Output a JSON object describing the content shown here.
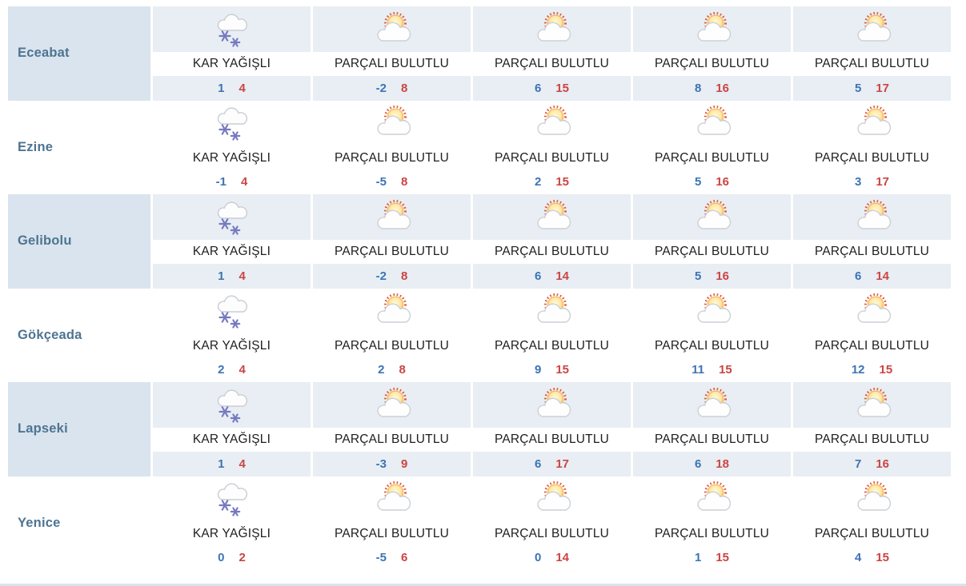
{
  "colors": {
    "min_temp": "#3c74b4",
    "max_temp": "#cc4444",
    "shaded_row_bg": "#d9e4ee",
    "forecast_tile_bg": "#e8eef3",
    "city_name_text": "#4e7492",
    "snowflake": "#757ac1",
    "sun_ray": "#e25b35"
  },
  "conditions": {
    "snow_label": "KAR YAĞIŞLI",
    "partly_cloudy_label": "PARÇALI BULUTLU"
  },
  "rows": [
    {
      "name": "Eceabat",
      "shaded": true,
      "forecasts": [
        {
          "icon": "snow-cloud-icon",
          "condition": "KAR YAĞIŞLI",
          "min": "1",
          "max": "4"
        },
        {
          "icon": "sun-behind-cloud-icon",
          "condition": "PARÇALI BULUTLU",
          "min": "-2",
          "max": "8"
        },
        {
          "icon": "sun-behind-cloud-icon",
          "condition": "PARÇALI BULUTLU",
          "min": "6",
          "max": "15"
        },
        {
          "icon": "sun-behind-cloud-icon",
          "condition": "PARÇALI BULUTLU",
          "min": "8",
          "max": "16"
        },
        {
          "icon": "sun-behind-cloud-icon",
          "condition": "PARÇALI BULUTLU",
          "min": "5",
          "max": "17"
        }
      ]
    },
    {
      "name": "Ezine",
      "shaded": false,
      "forecasts": [
        {
          "icon": "snow-cloud-icon",
          "condition": "KAR YAĞIŞLI",
          "min": "-1",
          "max": "4"
        },
        {
          "icon": "sun-behind-cloud-icon",
          "condition": "PARÇALI BULUTLU",
          "min": "-5",
          "max": "8"
        },
        {
          "icon": "sun-behind-cloud-icon",
          "condition": "PARÇALI BULUTLU",
          "min": "2",
          "max": "15"
        },
        {
          "icon": "sun-behind-cloud-icon",
          "condition": "PARÇALI BULUTLU",
          "min": "5",
          "max": "16"
        },
        {
          "icon": "sun-behind-cloud-icon",
          "condition": "PARÇALI BULUTLU",
          "min": "3",
          "max": "17"
        }
      ]
    },
    {
      "name": "Gelibolu",
      "shaded": true,
      "forecasts": [
        {
          "icon": "snow-cloud-icon",
          "condition": "KAR YAĞIŞLI",
          "min": "1",
          "max": "4"
        },
        {
          "icon": "sun-behind-cloud-icon",
          "condition": "PARÇALI BULUTLU",
          "min": "-2",
          "max": "8"
        },
        {
          "icon": "sun-behind-cloud-icon",
          "condition": "PARÇALI BULUTLU",
          "min": "6",
          "max": "14"
        },
        {
          "icon": "sun-behind-cloud-icon",
          "condition": "PARÇALI BULUTLU",
          "min": "5",
          "max": "16"
        },
        {
          "icon": "sun-behind-cloud-icon",
          "condition": "PARÇALI BULUTLU",
          "min": "6",
          "max": "14"
        }
      ]
    },
    {
      "name": "Gökçeada",
      "shaded": false,
      "forecasts": [
        {
          "icon": "snow-cloud-icon",
          "condition": "KAR YAĞIŞLI",
          "min": "2",
          "max": "4"
        },
        {
          "icon": "sun-behind-cloud-icon",
          "condition": "PARÇALI BULUTLU",
          "min": "2",
          "max": "8"
        },
        {
          "icon": "sun-behind-cloud-icon",
          "condition": "PARÇALI BULUTLU",
          "min": "9",
          "max": "15"
        },
        {
          "icon": "sun-behind-cloud-icon",
          "condition": "PARÇALI BULUTLU",
          "min": "11",
          "max": "15"
        },
        {
          "icon": "sun-behind-cloud-icon",
          "condition": "PARÇALI BULUTLU",
          "min": "12",
          "max": "15"
        }
      ]
    },
    {
      "name": "Lapseki",
      "shaded": true,
      "forecasts": [
        {
          "icon": "snow-cloud-icon",
          "condition": "KAR YAĞIŞLI",
          "min": "1",
          "max": "4"
        },
        {
          "icon": "sun-behind-cloud-icon",
          "condition": "PARÇALI BULUTLU",
          "min": "-3",
          "max": "9"
        },
        {
          "icon": "sun-behind-cloud-icon",
          "condition": "PARÇALI BULUTLU",
          "min": "6",
          "max": "17"
        },
        {
          "icon": "sun-behind-cloud-icon",
          "condition": "PARÇALI BULUTLU",
          "min": "6",
          "max": "18"
        },
        {
          "icon": "sun-behind-cloud-icon",
          "condition": "PARÇALI BULUTLU",
          "min": "7",
          "max": "16"
        }
      ]
    },
    {
      "name": "Yenice",
      "shaded": false,
      "forecasts": [
        {
          "icon": "snow-cloud-icon",
          "condition": "KAR YAĞIŞLI",
          "min": "0",
          "max": "2"
        },
        {
          "icon": "sun-behind-cloud-icon",
          "condition": "PARÇALI BULUTLU",
          "min": "-5",
          "max": "6"
        },
        {
          "icon": "sun-behind-cloud-icon",
          "condition": "PARÇALI BULUTLU",
          "min": "0",
          "max": "14"
        },
        {
          "icon": "sun-behind-cloud-icon",
          "condition": "PARÇALI BULUTLU",
          "min": "1",
          "max": "15"
        },
        {
          "icon": "sun-behind-cloud-icon",
          "condition": "PARÇALI BULUTLU",
          "min": "4",
          "max": "15"
        }
      ]
    }
  ]
}
